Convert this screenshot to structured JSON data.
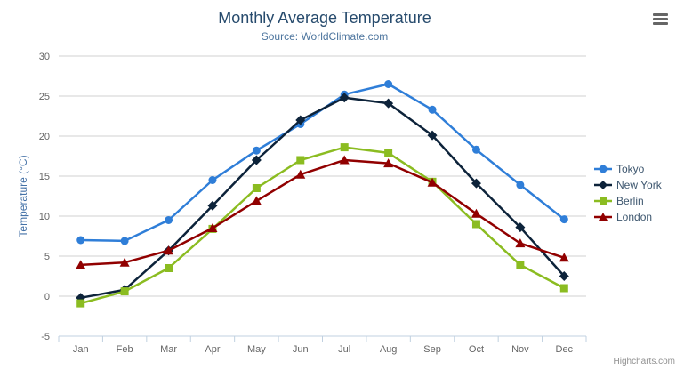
{
  "chart": {
    "title": "Monthly Average Temperature",
    "subtitle": "Source: WorldClimate.com",
    "credits": "Highcharts.com",
    "export_menu_icon": "hamburger-icon"
  },
  "colors": {
    "title": "#274b6d",
    "subtitle": "#4d759e",
    "axis_labels": "#666666",
    "y_axis_title": "#4572A7",
    "legend_text": "#3E576F",
    "gridline": "#d2d2d2",
    "axis_line": "#C0D0E0",
    "credits": "#909090"
  },
  "chart_data": {
    "type": "line",
    "title": "Monthly Average Temperature",
    "subtitle": "Source: WorldClimate.com",
    "categories": [
      "Jan",
      "Feb",
      "Mar",
      "Apr",
      "May",
      "Jun",
      "Jul",
      "Aug",
      "Sep",
      "Oct",
      "Nov",
      "Dec"
    ],
    "xlabel": "",
    "ylabel": "Temperature (°C)",
    "ylim": [
      -5,
      30
    ],
    "tick_interval": 5,
    "grid": true,
    "legend_position": "right",
    "series": [
      {
        "name": "Tokyo",
        "color": "#2f7ed8",
        "marker": "circle",
        "values": [
          7.0,
          6.9,
          9.5,
          14.5,
          18.2,
          21.5,
          25.2,
          26.5,
          23.3,
          18.3,
          13.9,
          9.6
        ]
      },
      {
        "name": "New York",
        "color": "#0d233a",
        "marker": "diamond",
        "values": [
          -0.2,
          0.8,
          5.7,
          11.3,
          17.0,
          22.0,
          24.8,
          24.1,
          20.1,
          14.1,
          8.6,
          2.5
        ]
      },
      {
        "name": "Berlin",
        "color": "#8bbc21",
        "marker": "square",
        "values": [
          -0.9,
          0.6,
          3.5,
          8.4,
          13.5,
          17.0,
          18.6,
          17.9,
          14.3,
          9.0,
          3.9,
          1.0
        ]
      },
      {
        "name": "London",
        "color": "#910000",
        "marker": "triangle",
        "values": [
          3.9,
          4.2,
          5.7,
          8.5,
          11.9,
          15.2,
          17.0,
          16.6,
          14.2,
          10.3,
          6.6,
          4.8
        ]
      }
    ]
  }
}
